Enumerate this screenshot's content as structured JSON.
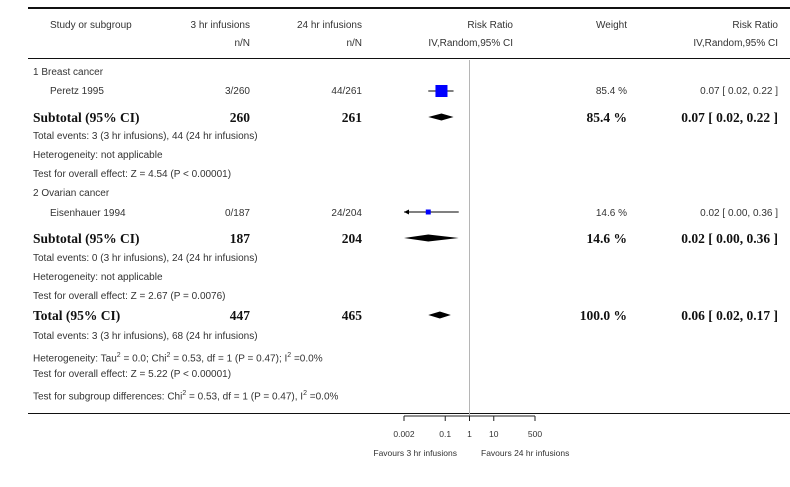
{
  "header": {
    "col_study": "Study or subgroup",
    "col_exp": "3 hr infusions",
    "col_ctrl": "24 hr infusions",
    "col_exp_sub": "n/N",
    "col_ctrl_sub": "n/N",
    "col_rr": "Risk Ratio",
    "col_rr_sub": "IV,Random,95% CI",
    "col_weight": "Weight",
    "col_rr2": "Risk Ratio",
    "col_rr2_sub": "IV,Random,95% CI"
  },
  "groups": [
    {
      "title": "1 Breast cancer",
      "study": {
        "name": "Peretz 1995",
        "exp": "3/260",
        "ctrl": "44/261",
        "weight": "85.4 %",
        "ci_text": "0.07 [ 0.02, 0.22 ]"
      },
      "subtotal": {
        "label": "Subtotal (95% CI)",
        "exp": "260",
        "ctrl": "261",
        "weight": "85.4 %",
        "ci_text": "0.07 [ 0.02, 0.22 ]"
      },
      "notes": [
        "Total events: 3 (3 hr infusions), 44 (24 hr infusions)",
        "Heterogeneity: not applicable",
        "Test for overall effect: Z = 4.54 (P < 0.00001)"
      ]
    },
    {
      "title": "2 Ovarian cancer",
      "study": {
        "name": "Eisenhauer 1994",
        "exp": "0/187",
        "ctrl": "24/204",
        "weight": "14.6 %",
        "ci_text": "0.02 [ 0.00, 0.36 ]"
      },
      "subtotal": {
        "label": "Subtotal (95% CI)",
        "exp": "187",
        "ctrl": "204",
        "weight": "14.6 %",
        "ci_text": "0.02 [ 0.00, 0.36 ]"
      },
      "notes": [
        "Total events: 0 (3 hr infusions), 24 (24 hr infusions)",
        "Heterogeneity: not applicable",
        "Test for overall effect: Z = 2.67 (P = 0.0076)"
      ]
    }
  ],
  "total": {
    "label": "Total (95% CI)",
    "exp": "447",
    "ctrl": "465",
    "weight": "100.0 %",
    "ci_text": "0.06 [ 0.02, 0.17 ]"
  },
  "total_notes": [
    {
      "pre": "Total events: 3 (3 hr infusions), 68 (24 hr infusions)"
    },
    {
      "pre": "Heterogeneity: Tau",
      "sup1": "2",
      "mid": " = 0.0; Chi",
      "sup2": "2",
      "post": " = 0.53, df = 1 (P = 0.47); I",
      "sup3": "2",
      "end": " =0.0%"
    },
    {
      "pre": "Test for overall effect: Z = 5.22 (P < 0.00001)"
    },
    {
      "pre": "Test for subgroup differences: Chi",
      "sup1": "2",
      "mid": " = 0.53, df = 1 (P = 0.47), I",
      "sup2": "2",
      "post": " =0.0%"
    }
  ],
  "axis": {
    "ticks": [
      "0.002",
      "0.1",
      "1",
      "10",
      "500"
    ],
    "favours_left": "Favours 3 hr infusions",
    "favours_right": "Favours 24 hr infusions"
  },
  "chart_data": {
    "type": "forest",
    "scale": "log",
    "xlim": [
      0.002,
      500
    ],
    "marker_color": "#0000ff",
    "studies": [
      {
        "name": "Peretz 1995",
        "rr": 0.07,
        "lo": 0.02,
        "hi": 0.22,
        "weight": 85.4
      },
      {
        "name": "Eisenhauer 1994",
        "rr": 0.02,
        "lo": 0.0,
        "hi": 0.36,
        "weight": 14.6
      }
    ],
    "pooled": [
      {
        "label": "Subtotal (95% CI)",
        "group": "1 Breast cancer",
        "rr": 0.07,
        "lo": 0.02,
        "hi": 0.22
      },
      {
        "label": "Subtotal (95% CI)",
        "group": "2 Ovarian cancer",
        "rr": 0.02,
        "lo": 0.0,
        "hi": 0.36
      },
      {
        "label": "Total (95% CI)",
        "rr": 0.06,
        "lo": 0.02,
        "hi": 0.17
      }
    ]
  }
}
